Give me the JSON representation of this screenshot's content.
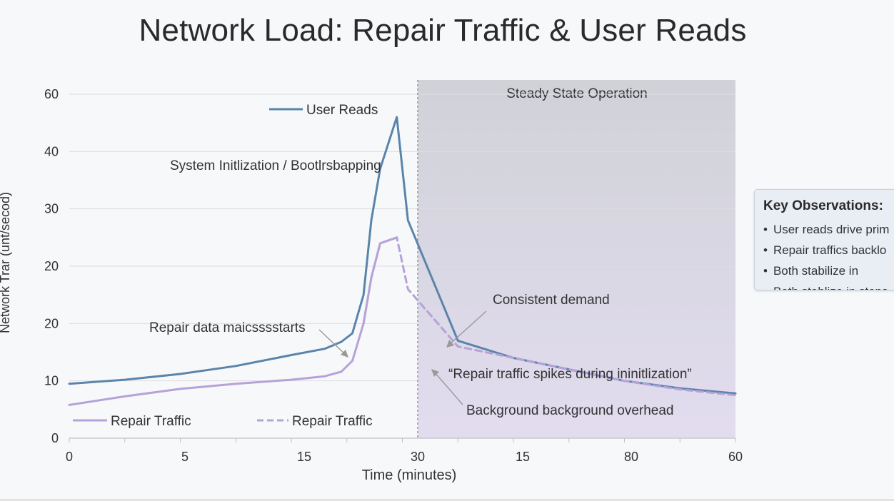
{
  "title": "Network Load: Repair Traffic & User Reads",
  "chart_data": {
    "type": "line",
    "title": "Network Load: Repair Traffic & User Reads",
    "xlabel": "Time (minutes)",
    "ylabel": "Network Trar (unt/secod)",
    "x_ticks": [
      "0",
      "5",
      "15",
      "30",
      "15",
      "80",
      "60"
    ],
    "y_ticks": [
      "0",
      "10",
      "20",
      "20",
      "30",
      "40",
      "60"
    ],
    "x_range": [
      0,
      60
    ],
    "y_range": [
      0,
      60
    ],
    "grid": true,
    "series": [
      {
        "name": "User Reads",
        "color": "#5b84ab",
        "style": "solid",
        "x": [
          0,
          5,
          10,
          15,
          20,
          23,
          24.5,
          25.5,
          26.5,
          27.2,
          28,
          29.5,
          30.5,
          35,
          40,
          45,
          50,
          55,
          60
        ],
        "y": [
          9.5,
          10.2,
          11.2,
          12.6,
          14.5,
          15.6,
          16.8,
          18.3,
          25,
          38,
          47,
          56,
          38,
          17,
          14,
          12,
          10,
          8.7,
          7.8
        ]
      },
      {
        "name": "Repair Traffic",
        "color": "#b6a2d8",
        "style": "solid",
        "x": [
          0,
          5,
          10,
          15,
          20,
          23,
          24.5,
          25.5,
          26.5,
          27.2,
          28,
          29.5
        ],
        "y": [
          5.8,
          7.3,
          8.6,
          9.5,
          10.2,
          10.8,
          11.6,
          13.5,
          20,
          28,
          34,
          35
        ]
      },
      {
        "name": "Repair Traffic",
        "color": "#b6a2d8",
        "style": "dashed",
        "x": [
          26.5,
          27.2,
          28,
          29.5,
          30.5,
          35,
          40,
          45,
          50,
          55,
          60
        ],
        "y": [
          20,
          28,
          34,
          35,
          26,
          16,
          14,
          12,
          10,
          8.5,
          7.5
        ]
      }
    ],
    "shaded_region": {
      "label": "Steady State Operation",
      "x_start": 30,
      "x_end": 60
    },
    "annotations": [
      "System Initlization / Bootlrsbapping",
      "Repair data maicsssstarts",
      "Consistent demand",
      "“Repair traffic spikes during ininitlization”",
      "Background background overhead"
    ],
    "legend": [
      "User Reads",
      "Repair Traffic",
      "Repair Traffic"
    ]
  },
  "observations": {
    "title": "Key Observations:",
    "items": [
      "User reads drive prim",
      "Repair traffics backlo",
      "Both stabilize in",
      "Both stablize in stops"
    ]
  },
  "colors": {
    "user_reads": "#5b84ab",
    "repair_traffic": "#b6a2d8",
    "steady_region": "#d3d5db"
  }
}
